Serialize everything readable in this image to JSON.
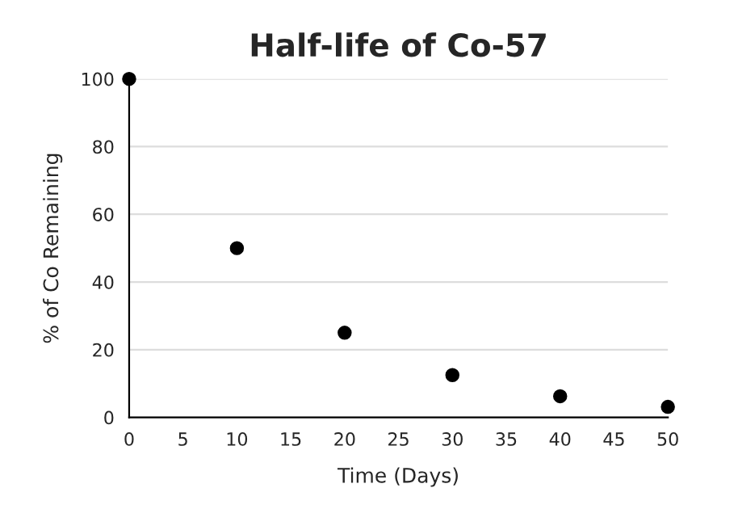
{
  "chart_data": {
    "type": "scatter",
    "title": "Half-life of Co-57",
    "xlabel": "Time (Days)",
    "ylabel": "% of Co Remaining",
    "x": [
      0,
      10,
      20,
      30,
      40,
      50
    ],
    "series": [
      {
        "color": "#000000",
        "values": [
          100,
          50,
          25,
          12.5,
          6.25,
          3.1
        ]
      }
    ],
    "xlim": [
      0,
      50
    ],
    "xticks": [
      0,
      5,
      10,
      15,
      20,
      25,
      30,
      35,
      40,
      45,
      50
    ],
    "ylim": [
      0,
      100
    ],
    "yticks": [
      0,
      20,
      40,
      60,
      80,
      100
    ],
    "grid": "y",
    "marker": "circle"
  }
}
